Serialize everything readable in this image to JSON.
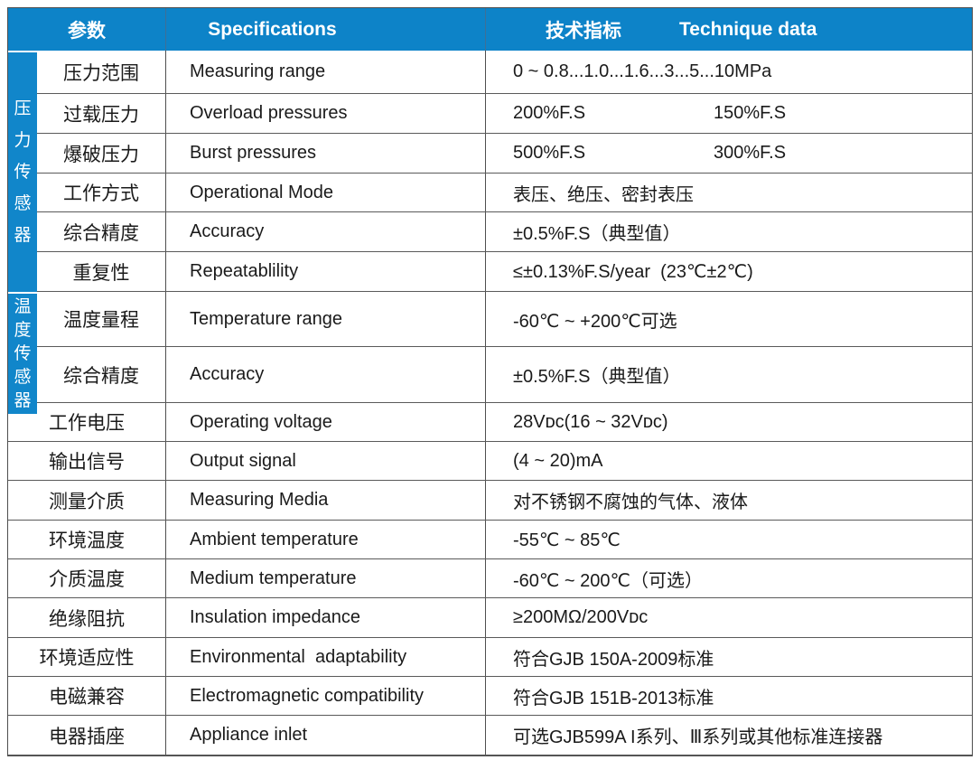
{
  "header": {
    "param": "参数",
    "specifications": "Specifications",
    "technique_cn": "技术指标",
    "technique_en": "Technique data"
  },
  "groups": {
    "pressure": "压力传感器",
    "temperature": "温度传感器"
  },
  "colors": {
    "header_bg": "#0d83c8",
    "group_bg": "#1186ca",
    "border_line": "#555555",
    "header_text": "#ffffff",
    "body_text": "#1a1a1a"
  },
  "rows": [
    {
      "cn": "压力范围",
      "en": "Measuring range",
      "value": "0 ~ 0.8...1.0...1.6...3...5...10MPa",
      "group": "pressure"
    },
    {
      "cn": "过载压力",
      "en": "Overload pressures",
      "value": "200%F.S",
      "value2": "150%F.S",
      "group": "pressure"
    },
    {
      "cn": "爆破压力",
      "en": "Burst pressures",
      "value": "500%F.S",
      "value2": "300%F.S",
      "group": "pressure"
    },
    {
      "cn": "工作方式",
      "en": "Operational Mode",
      "value": "表压、绝压、密封表压",
      "group": "pressure"
    },
    {
      "cn": "综合精度",
      "en": "Accuracy",
      "value": "±0.5%F.S（典型值）",
      "group": "pressure"
    },
    {
      "cn": "重复性",
      "en": "Repeatablility",
      "value": "≤±0.13%F.S/year  (23℃±2℃)",
      "group": "pressure"
    },
    {
      "cn": "温度量程",
      "en": "Temperature range",
      "value": "-60℃ ~ +200℃可选",
      "group": "temperature"
    },
    {
      "cn": "综合精度",
      "en": "Accuracy",
      "value": "±0.5%F.S（典型值）",
      "group": "temperature"
    },
    {
      "cn": "工作电压",
      "en": "Operating voltage",
      "value": "28Vᴅᴄ(16 ~ 32Vᴅᴄ)"
    },
    {
      "cn": "输出信号",
      "en": "Output signal",
      "value": "(4 ~ 20)mA"
    },
    {
      "cn": "测量介质",
      "en": "Measuring Media",
      "value": "对不锈钢不腐蚀的气体、液体"
    },
    {
      "cn": "环境温度",
      "en": "Ambient temperature",
      "value": "-55℃ ~ 85℃"
    },
    {
      "cn": "介质温度",
      "en": "Medium temperature",
      "value": "-60℃ ~ 200℃（可选）"
    },
    {
      "cn": "绝缘阻抗",
      "en": "Insulation impedance",
      "value": "≥200MΩ/200Vᴅᴄ"
    },
    {
      "cn": "环境适应性",
      "en": "Environmental  adaptability",
      "value": "符合GJB 150A-2009标准"
    },
    {
      "cn": "电磁兼容",
      "en": "Electromagnetic compatibility",
      "value": "符合GJB 151B-2013标准"
    },
    {
      "cn": "电器插座",
      "en": "Appliance inlet",
      "value": "可选GJB599A I系列、Ⅲ系列或其他标准连接器"
    }
  ]
}
